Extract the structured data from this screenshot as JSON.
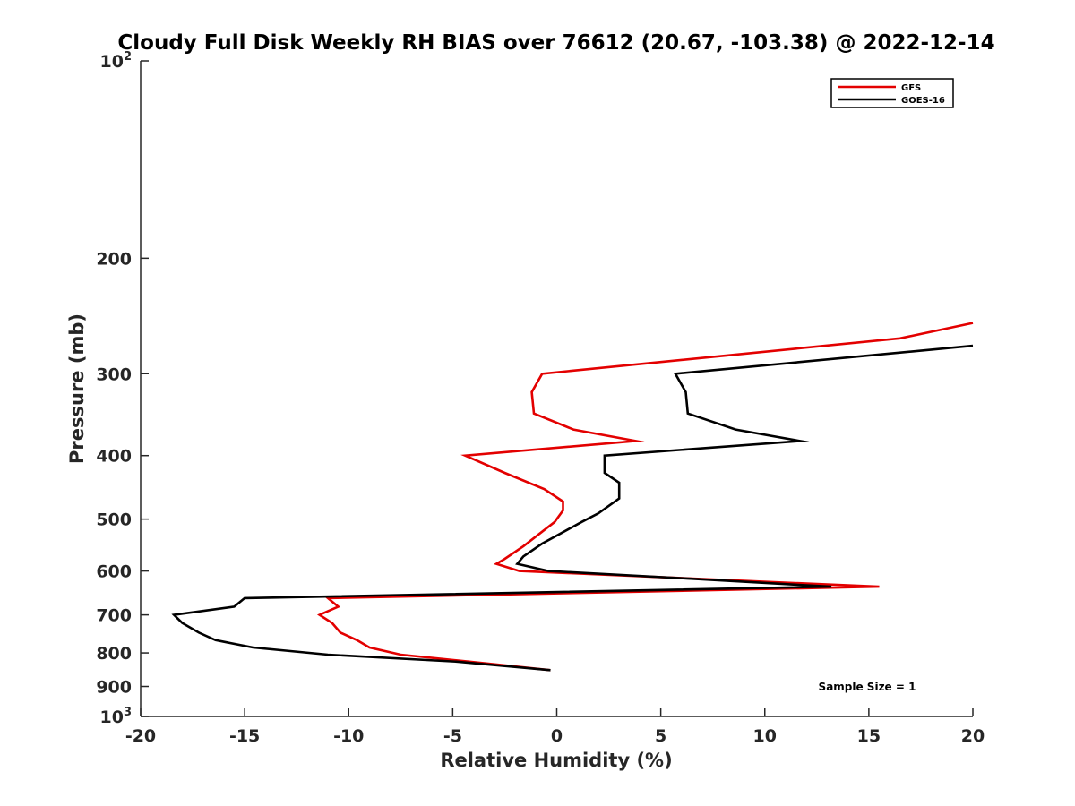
{
  "chart_data": {
    "type": "line",
    "title": "Cloudy Full Disk Weekly RH BIAS over 76612 (20.67, -103.38) @ 2022-12-14",
    "xlabel": "Relative Humidity (%)",
    "ylabel": "Pressure (mb)",
    "xlim": [
      -20,
      20
    ],
    "ylim": [
      1000,
      100
    ],
    "yscale": "log",
    "x_ticks": [
      -20,
      -15,
      -10,
      -5,
      0,
      5,
      10,
      15,
      20
    ],
    "y_ticks": [
      {
        "value": 100,
        "base": "10",
        "exp": "2"
      },
      {
        "value": 200,
        "label": "200"
      },
      {
        "value": 300,
        "label": "300"
      },
      {
        "value": 400,
        "label": "400"
      },
      {
        "value": 500,
        "label": "500"
      },
      {
        "value": 600,
        "label": "600"
      },
      {
        "value": 700,
        "label": "700"
      },
      {
        "value": 800,
        "label": "800"
      },
      {
        "value": 900,
        "label": "900"
      },
      {
        "value": 1000,
        "base": "10",
        "exp": "3"
      }
    ],
    "legend_position": "top-right",
    "series": [
      {
        "name": "GFS",
        "color": "#e30000",
        "points": [
          {
            "x": 20.0,
            "p": 251
          },
          {
            "x": 16.5,
            "p": 265
          },
          {
            "x": -0.7,
            "p": 300
          },
          {
            "x": -1.2,
            "p": 320
          },
          {
            "x": -1.1,
            "p": 345
          },
          {
            "x": 0.8,
            "p": 365
          },
          {
            "x": 3.8,
            "p": 380
          },
          {
            "x": -4.4,
            "p": 400
          },
          {
            "x": -2.5,
            "p": 425
          },
          {
            "x": -0.6,
            "p": 450
          },
          {
            "x": 0.3,
            "p": 470
          },
          {
            "x": 0.3,
            "p": 485
          },
          {
            "x": -0.1,
            "p": 505
          },
          {
            "x": -1.6,
            "p": 550
          },
          {
            "x": -2.5,
            "p": 575
          },
          {
            "x": -2.9,
            "p": 585
          },
          {
            "x": -1.8,
            "p": 600
          },
          {
            "x": 15.5,
            "p": 634
          },
          {
            "x": -11.0,
            "p": 660
          },
          {
            "x": -10.5,
            "p": 680
          },
          {
            "x": -11.4,
            "p": 700
          },
          {
            "x": -10.8,
            "p": 720
          },
          {
            "x": -10.4,
            "p": 745
          },
          {
            "x": -9.6,
            "p": 765
          },
          {
            "x": -9.0,
            "p": 785
          },
          {
            "x": -7.5,
            "p": 805
          },
          {
            "x": -4.2,
            "p": 825
          },
          {
            "x": -0.3,
            "p": 850
          }
        ]
      },
      {
        "name": "GOES-16",
        "color": "#000000",
        "points": [
          {
            "x": 20.0,
            "p": 272
          },
          {
            "x": 5.7,
            "p": 300
          },
          {
            "x": 6.2,
            "p": 320
          },
          {
            "x": 6.3,
            "p": 345
          },
          {
            "x": 8.6,
            "p": 365
          },
          {
            "x": 11.7,
            "p": 380
          },
          {
            "x": 2.3,
            "p": 400
          },
          {
            "x": 2.3,
            "p": 425
          },
          {
            "x": 3.0,
            "p": 440
          },
          {
            "x": 3.0,
            "p": 465
          },
          {
            "x": 2.0,
            "p": 490
          },
          {
            "x": 1.2,
            "p": 505
          },
          {
            "x": -0.7,
            "p": 545
          },
          {
            "x": -1.6,
            "p": 570
          },
          {
            "x": -1.9,
            "p": 585
          },
          {
            "x": -0.4,
            "p": 600
          },
          {
            "x": 5.9,
            "p": 615
          },
          {
            "x": 13.2,
            "p": 634
          },
          {
            "x": -15.0,
            "p": 660
          },
          {
            "x": -15.5,
            "p": 680
          },
          {
            "x": -18.4,
            "p": 700
          },
          {
            "x": -18.0,
            "p": 720
          },
          {
            "x": -17.2,
            "p": 745
          },
          {
            "x": -16.4,
            "p": 765
          },
          {
            "x": -14.6,
            "p": 785
          },
          {
            "x": -11.0,
            "p": 805
          },
          {
            "x": -4.8,
            "p": 825
          },
          {
            "x": -0.3,
            "p": 850
          }
        ]
      }
    ],
    "annotation": "Sample Size = 1"
  }
}
